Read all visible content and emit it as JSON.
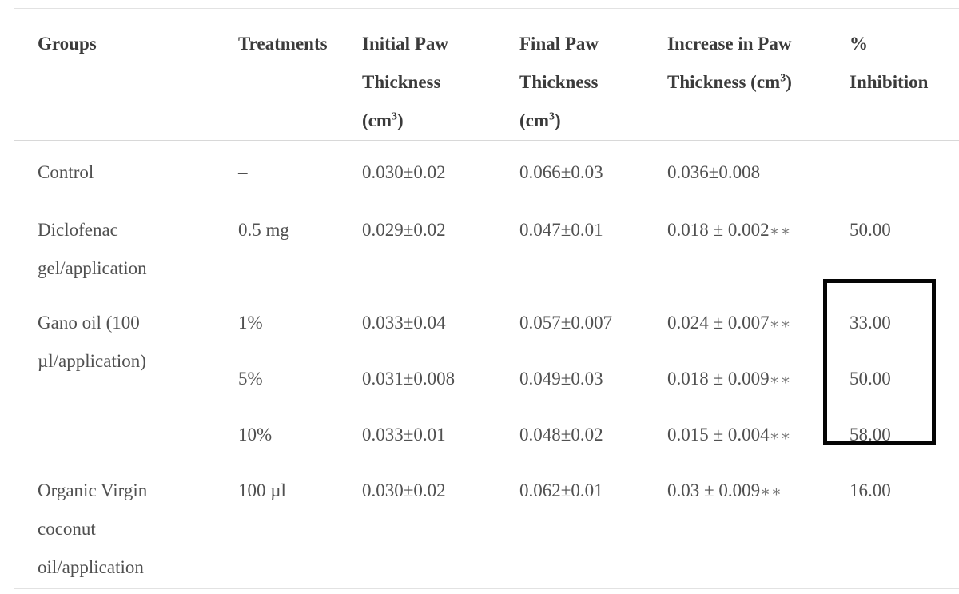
{
  "colors": {
    "background": "#ffffff",
    "header_text": "#3b3b3b",
    "body_text": "#505050",
    "rule_line": "#e2e2e2",
    "highlight_box": "#000000"
  },
  "annotation": {
    "type": "black-rectangle-highlight",
    "column": "% Inhibition",
    "values_enclosed": [
      "33.00",
      "50.00",
      "58.00"
    ]
  },
  "table": {
    "header": {
      "groups": {
        "line1": "Groups"
      },
      "treatments": {
        "line1": "Treatments"
      },
      "initial": {
        "line1": "Initial Paw",
        "line2": "Thickness",
        "unit_pre": "(cm",
        "unit_sup": "3",
        "unit_post": ")"
      },
      "final": {
        "line1": "Final Paw",
        "line2": "Thickness",
        "unit_pre": "(cm",
        "unit_sup": "3",
        "unit_post": ")"
      },
      "increase": {
        "line1": "Increase in Paw",
        "line2_pre": "Thickness (cm",
        "line2_sup": "3",
        "line2_post": ")"
      },
      "inhibition": {
        "line1": "%",
        "line2": "Inhibition"
      }
    },
    "rows": [
      {
        "group": "Control",
        "treatment": "–",
        "initial": "0.030±0.02",
        "final": "0.066±0.03",
        "increase": "0.036±0.008",
        "increase_sig": "",
        "inhibition": ""
      },
      {
        "group": "Diclofenac gel/application",
        "treatment": "0.5 mg",
        "initial": "0.029±0.02",
        "final": "0.047±0.01",
        "increase": "0.018 ± 0.002",
        "increase_sig": "∗∗",
        "inhibition": "50.00"
      },
      {
        "group": "Gano oil (100 µl/application)",
        "treatment": "1%",
        "initial": "0.033±0.04",
        "final": "0.057±0.007",
        "increase": "0.024 ± 0.007",
        "increase_sig": "∗∗",
        "inhibition": "33.00"
      },
      {
        "group": "",
        "treatment": "5%",
        "initial": "0.031±0.008",
        "final": "0.049±0.03",
        "increase": "0.018 ± 0.009",
        "increase_sig": "∗∗",
        "inhibition": "50.00"
      },
      {
        "group": "",
        "treatment": "10%",
        "initial": "0.033±0.01",
        "final": "0.048±0.02",
        "increase": "0.015 ± 0.004",
        "increase_sig": "∗∗",
        "inhibition": "58.00"
      },
      {
        "group": "Organic Virgin coconut oil/application",
        "treatment": "100 µl",
        "initial": "0.030±0.02",
        "final": "0.062±0.01",
        "increase": "0.03 ± 0.009",
        "increase_sig": "∗∗",
        "inhibition": "16.00"
      }
    ]
  }
}
